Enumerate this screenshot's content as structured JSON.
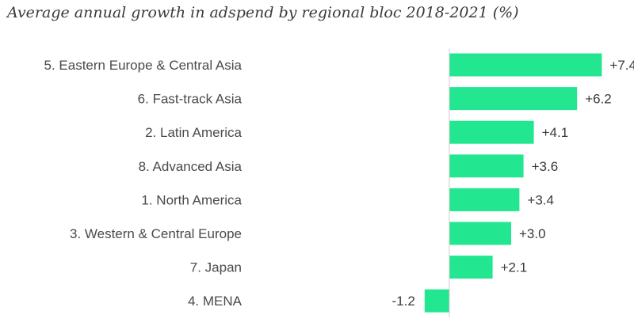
{
  "chart_data": {
    "type": "bar",
    "orientation": "horizontal",
    "title": "Average annual growth in adspend by regional bloc 2018-2021 (%)",
    "categories": [
      "5. Eastern Europe & Central Asia",
      "6. Fast-track Asia",
      "2. Latin America",
      "8. Advanced Asia",
      "1. North America",
      "3. Western & Central Europe",
      "7. Japan",
      "4. MENA"
    ],
    "values": [
      7.4,
      6.2,
      4.1,
      3.6,
      3.4,
      3.0,
      2.1,
      -1.2
    ],
    "value_labels": [
      "+7.4",
      "+6.2",
      "+4.1",
      "+3.6",
      "+3.4",
      "+3.0",
      "+2.1",
      "-1.2"
    ],
    "bar_color": "#23e690",
    "axis_color": "#cccccc",
    "grid": false,
    "legend": "none",
    "xlim": [
      -1.2,
      7.4
    ]
  }
}
